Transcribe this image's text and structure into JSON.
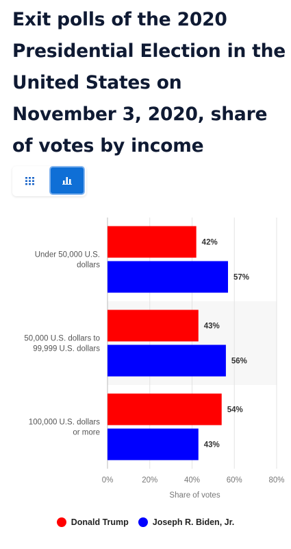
{
  "title": "Exit polls of the 2020 Presidential Election in the United States on November 3, 2020, share of votes by income",
  "toggle": {
    "table_icon": "grid-icon",
    "chart_icon": "bar-chart-icon",
    "active": "chart"
  },
  "colors": {
    "trump": "#ff0000",
    "biden": "#0000ff",
    "accent": "#0f6fd6"
  },
  "chart_data": {
    "type": "bar",
    "orientation": "horizontal",
    "categories": [
      "Under 50,000 U.S. dollars",
      "50,000 U.S. dollars to 99,999 U.S. dollars",
      "100,000 U.S. dollars or more"
    ],
    "category_lines": [
      [
        "Under 50,000 U.S.",
        "dollars"
      ],
      [
        "50,000 U.S. dollars to",
        "99,999 U.S. dollars"
      ],
      [
        "100,000 U.S. dollars",
        "or more"
      ]
    ],
    "series": [
      {
        "name": "Donald Trump",
        "values": [
          42,
          43,
          54
        ],
        "labels": [
          "42%",
          "43%",
          "54%"
        ],
        "color": "#ff0000"
      },
      {
        "name": "Joseph R. Biden, Jr.",
        "values": [
          57,
          56,
          43
        ],
        "labels": [
          "57%",
          "56%",
          "43%"
        ],
        "color": "#0000ff"
      }
    ],
    "xlim": [
      0,
      80
    ],
    "xticks": [
      0,
      20,
      40,
      60,
      80
    ],
    "xtick_labels": [
      "0%",
      "20%",
      "40%",
      "60%",
      "80%"
    ],
    "xlabel": "Share of votes",
    "grid": true,
    "legend_position": "bottom"
  }
}
